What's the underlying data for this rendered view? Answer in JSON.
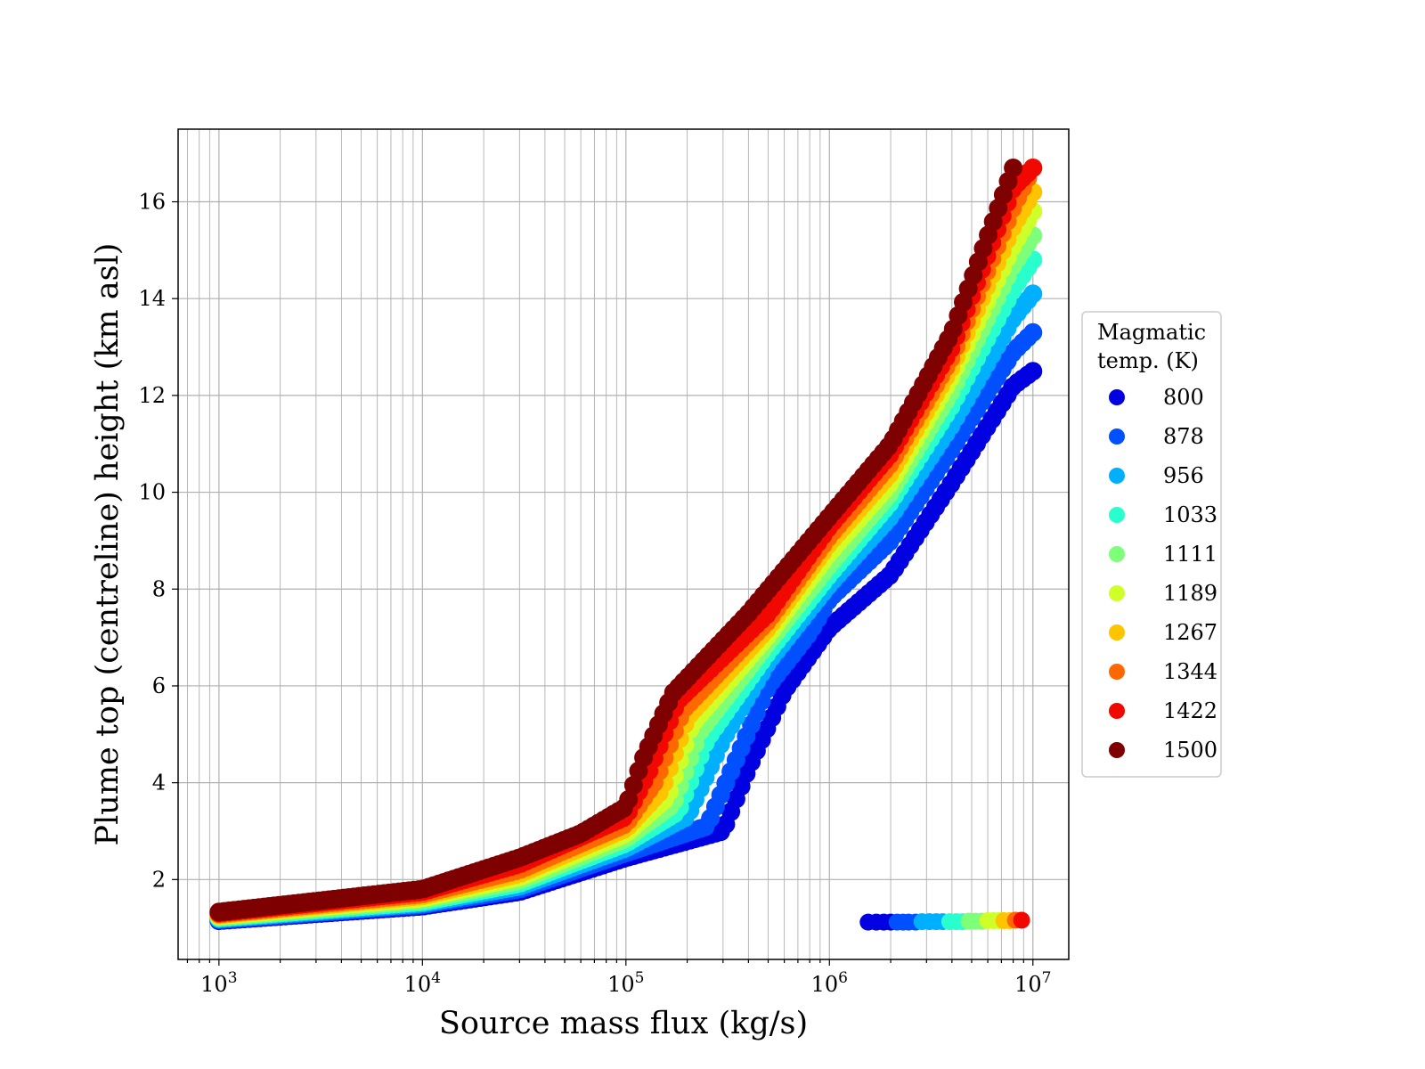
{
  "chart_data": {
    "type": "scatter",
    "title": "",
    "xlabel": "Source mass flux (kg/s)",
    "ylabel": "Plume top (centreline) height (km asl)",
    "xscale": "log",
    "xlim": [
      630,
      15000000
    ],
    "ylim": [
      0.35,
      17.5
    ],
    "x_ticks": [
      {
        "value": 1000,
        "base": "10",
        "exp": "3"
      },
      {
        "value": 10000,
        "base": "10",
        "exp": "4"
      },
      {
        "value": 100000,
        "base": "10",
        "exp": "5"
      },
      {
        "value": 1000000,
        "base": "10",
        "exp": "6"
      },
      {
        "value": 10000000,
        "base": "10",
        "exp": "7"
      }
    ],
    "y_ticks": [
      {
        "value": 2,
        "label": "2"
      },
      {
        "value": 4,
        "label": "4"
      },
      {
        "value": 6,
        "label": "6"
      },
      {
        "value": 8,
        "label": "8"
      },
      {
        "value": 10,
        "label": "10"
      },
      {
        "value": 12,
        "label": "12"
      },
      {
        "value": 14,
        "label": "14"
      },
      {
        "value": 16,
        "label": "16"
      }
    ],
    "grid": true,
    "legend": {
      "title_lines": [
        "Magmatic",
        "temp. (K)"
      ],
      "placement": "outside-right"
    },
    "series": [
      {
        "name": "800",
        "color": "#0000e0",
        "x": [
          1000,
          10000,
          30000,
          100000,
          300000,
          400000,
          600000,
          1000000,
          2000000,
          4000000,
          8000000,
          10000000
        ],
        "y": [
          1.15,
          1.45,
          1.75,
          2.45,
          3.0,
          4.3,
          5.9,
          7.2,
          8.3,
          10.2,
          12.2,
          12.5
        ],
        "band_x": [
          1550000,
          1700000,
          1850000,
          2000000
        ],
        "band_y": 1.12
      },
      {
        "name": "878",
        "color": "#0050ff",
        "x": [
          1000,
          10000,
          30000,
          100000,
          250000,
          350000,
          500000,
          800000,
          1000000,
          2000000,
          4000000,
          8000000,
          10000000
        ],
        "y": [
          1.17,
          1.48,
          1.8,
          2.55,
          3.1,
          4.5,
          6.0,
          7.1,
          7.8,
          9.0,
          10.9,
          12.9,
          13.3
        ],
        "band_x": [
          2150000,
          2300000,
          2450000,
          2650000
        ],
        "band_y": 1.12
      },
      {
        "name": "956",
        "color": "#00b0ff",
        "x": [
          1000,
          10000,
          30000,
          100000,
          200000,
          300000,
          500000,
          1000000,
          2000000,
          4000000,
          8000000,
          10000000
        ],
        "y": [
          1.19,
          1.51,
          1.86,
          2.65,
          3.3,
          4.9,
          6.5,
          8.1,
          9.5,
          11.4,
          13.6,
          14.1
        ],
        "band_x": [
          2850000,
          3100000,
          3350000,
          3600000
        ],
        "band_y": 1.13
      },
      {
        "name": "1033",
        "color": "#29ffce",
        "x": [
          1000,
          10000,
          30000,
          100000,
          180000,
          250000,
          500000,
          1000000,
          2000000,
          4000000,
          8000000,
          10000000
        ],
        "y": [
          1.21,
          1.54,
          1.92,
          2.75,
          3.4,
          4.9,
          6.7,
          8.3,
          9.8,
          11.8,
          14.2,
          14.8
        ],
        "band_x": [
          3900000,
          4200000,
          4500000
        ],
        "band_y": 1.13
      },
      {
        "name": "1111",
        "color": "#7dff7a",
        "x": [
          1000,
          10000,
          30000,
          100000,
          170000,
          230000,
          500000,
          1000000,
          2000000,
          4000000,
          8000000,
          10000000
        ],
        "y": [
          1.23,
          1.58,
          1.98,
          2.85,
          3.55,
          5.05,
          6.9,
          8.5,
          10.0,
          12.1,
          14.7,
          15.3
        ],
        "band_x": [
          4850000,
          5200000,
          5600000
        ],
        "band_y": 1.14
      },
      {
        "name": "1189",
        "color": "#ceff29",
        "x": [
          1000,
          10000,
          30000,
          100000,
          160000,
          210000,
          500000,
          1000000,
          2000000,
          4000000,
          8000000,
          10000000
        ],
        "y": [
          1.25,
          1.62,
          2.05,
          2.95,
          3.7,
          5.2,
          7.05,
          8.75,
          10.2,
          12.4,
          15.1,
          15.8
        ],
        "band_x": [
          6000000,
          6400000,
          6800000
        ],
        "band_y": 1.15
      },
      {
        "name": "1267",
        "color": "#ffc400",
        "x": [
          1000,
          10000,
          30000,
          100000,
          150000,
          200000,
          500000,
          1000000,
          2000000,
          4000000,
          8000000,
          10000000
        ],
        "y": [
          1.27,
          1.66,
          2.12,
          3.05,
          3.85,
          5.35,
          7.2,
          8.95,
          10.4,
          12.6,
          15.5,
          16.2
        ],
        "band_x": [
          7200000,
          7700000
        ],
        "band_y": 1.15
      },
      {
        "name": "1344",
        "color": "#ff6800",
        "x": [
          1000,
          10000,
          30000,
          100000,
          140000,
          190000,
          500000,
          1000000,
          2000000,
          4000000,
          8000000,
          10000000
        ],
        "y": [
          1.29,
          1.7,
          2.2,
          3.15,
          4.05,
          5.5,
          7.35,
          9.1,
          10.6,
          12.8,
          15.9,
          16.7
        ],
        "band_x": [
          8200000
        ],
        "band_y": 1.16
      },
      {
        "name": "1422",
        "color": "#f10800",
        "x": [
          1000,
          10000,
          30000,
          100000,
          130000,
          180000,
          500000,
          1000000,
          2000000,
          4000000,
          8000000,
          10000000
        ],
        "y": [
          1.31,
          1.75,
          2.32,
          3.3,
          4.25,
          5.7,
          7.5,
          9.3,
          10.8,
          13.0,
          16.3,
          16.7
        ],
        "band_x": [
          8800000
        ],
        "band_y": 1.16
      },
      {
        "name": "1500",
        "color": "#7f0000",
        "x": [
          1000,
          10000,
          30000,
          60000,
          100000,
          120000,
          170000,
          400000,
          1000000,
          2000000,
          4000000,
          8000000
        ],
        "y": [
          1.33,
          1.8,
          2.45,
          2.95,
          3.5,
          4.45,
          5.85,
          7.5,
          9.5,
          11.0,
          13.3,
          16.7
        ],
        "band_x": [],
        "band_y": 1.16
      }
    ]
  }
}
